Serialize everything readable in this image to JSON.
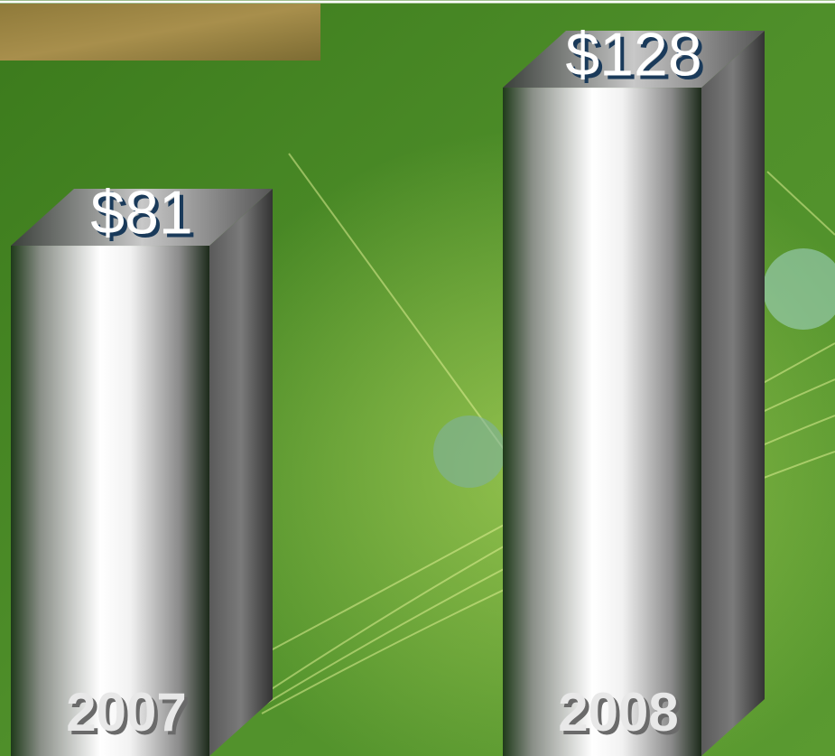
{
  "chart_data": {
    "type": "bar3d",
    "categories": [
      "2007",
      "2008"
    ],
    "values": [
      81,
      128
    ],
    "value_labels": [
      "$81",
      "$128"
    ]
  }
}
